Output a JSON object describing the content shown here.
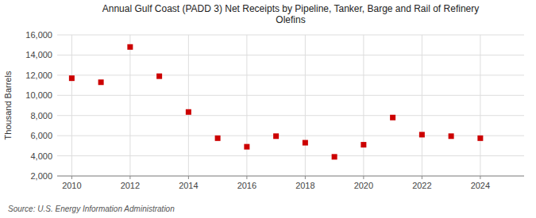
{
  "chart_data": {
    "type": "scatter",
    "title": "Annual Gulf Coast (PADD 3) Net Receipts by Pipeline, Tanker, Barge and Rail of Refinery\nOlefins",
    "y_label": "Thousand Barrels",
    "annotations": [
      "Source: U.S. Energy Information Administration"
    ],
    "x": [
      2010,
      2011,
      2012,
      2013,
      2014,
      2015,
      2016,
      2017,
      2018,
      2019,
      2020,
      2021,
      2022,
      2023,
      2024
    ],
    "values": [
      11700,
      11300,
      14800,
      11900,
      8350,
      5750,
      4900,
      5950,
      5300,
      3900,
      5100,
      7800,
      6100,
      5950,
      5750
    ],
    "color": "#cc0000",
    "marker": "square",
    "xlim": [
      2009.5,
      2025.5
    ],
    "ylim": [
      2000,
      16000
    ],
    "xticks": [
      2010,
      2012,
      2014,
      2016,
      2018,
      2020,
      2022,
      2024
    ],
    "yticks": [
      {
        "value": 2000,
        "label": "2,000"
      },
      {
        "value": 4000,
        "label": "4,000"
      },
      {
        "value": 6000,
        "label": "6,000"
      },
      {
        "value": 8000,
        "label": "8,000"
      },
      {
        "value": 10000,
        "label": "10,000"
      },
      {
        "value": 12000,
        "label": "12,000"
      },
      {
        "value": 14000,
        "label": "14,000"
      },
      {
        "value": 16000,
        "label": "16,000"
      }
    ],
    "grid": true
  }
}
